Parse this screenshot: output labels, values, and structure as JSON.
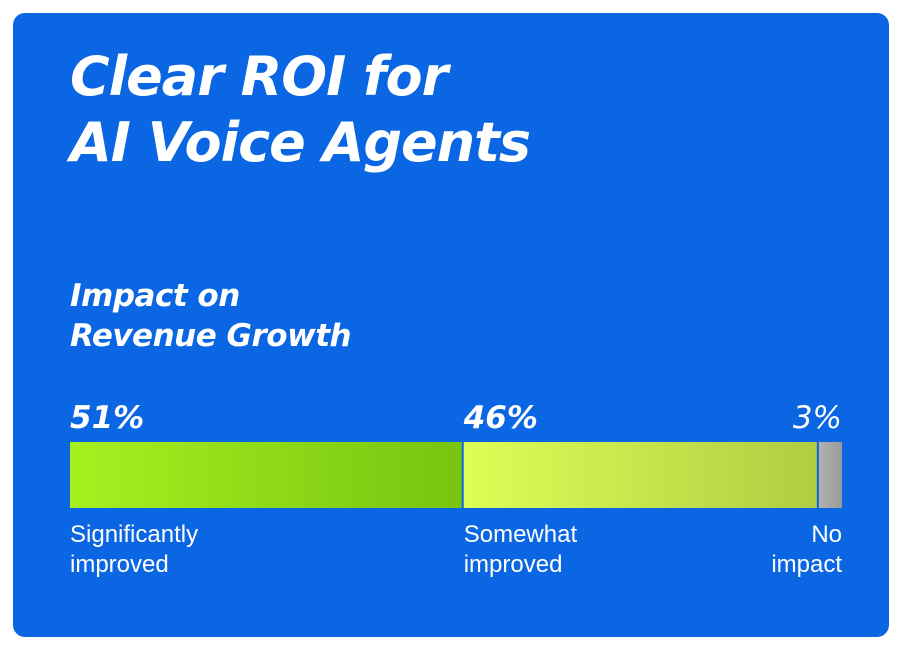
{
  "title": {
    "line1": "Clear ROI for",
    "line2": "AI Voice Agents"
  },
  "subtitle": {
    "line1": "Impact on",
    "line2": "Revenue Growth"
  },
  "colors": {
    "background": "#0a66e2",
    "significantly_improved": [
      "#a6f020",
      "#78c410"
    ],
    "somewhat_improved": [
      "#dcff55",
      "#b0cc42"
    ],
    "no_impact": [
      "#b2b2b2",
      "#9a9a9a"
    ]
  },
  "chart_data": {
    "type": "bar",
    "orientation": "horizontal-stacked-100",
    "unit": "%",
    "series": [
      {
        "label": "Significantly improved",
        "label_lines": [
          "Significantly",
          "improved"
        ],
        "value": 51,
        "value_label": "51%",
        "label_bold": true,
        "label_align": "left"
      },
      {
        "label": "Somewhat improved",
        "label_lines": [
          "Somewhat",
          "improved"
        ],
        "value": 46,
        "value_label": "46%",
        "label_bold": true,
        "label_align": "left"
      },
      {
        "label": "No impact",
        "label_lines": [
          "No",
          "impact"
        ],
        "value": 3,
        "value_label": "3%",
        "label_bold": false,
        "label_align": "right"
      }
    ]
  }
}
